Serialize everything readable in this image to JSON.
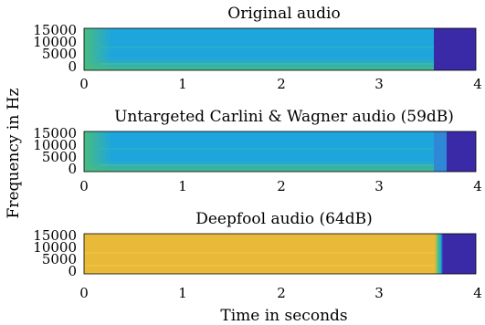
{
  "chart_data": [
    {
      "type": "heatmap",
      "title": "Original audio",
      "x_range": [
        0,
        4
      ],
      "y_range": [
        0,
        16000
      ],
      "x_ticks": [
        0,
        1,
        2,
        3,
        4
      ],
      "y_ticks": [
        0,
        5000,
        10000,
        15000
      ],
      "signal_end_s": 3.55,
      "background_color": "#1ea6dc",
      "silence_color": "#3b2aa8",
      "low_band_color": "#4dbd7a"
    },
    {
      "type": "heatmap",
      "title": "Untargeted Carlini & Wagner audio (59dB)",
      "x_range": [
        0,
        4
      ],
      "y_range": [
        0,
        16000
      ],
      "x_ticks": [
        0,
        1,
        2,
        3,
        4
      ],
      "y_ticks": [
        0,
        5000,
        10000,
        15000
      ],
      "signal_end_s": 3.55,
      "perturbation_end_s": 3.67,
      "background_color": "#1ea6dc",
      "silence_color": "#3b2aa8",
      "low_band_color": "#4dbd7a"
    },
    {
      "type": "heatmap",
      "title": "Deepfool audio (64dB)",
      "x_range": [
        0,
        4
      ],
      "y_range": [
        0,
        16000
      ],
      "x_ticks": [
        0,
        1,
        2,
        3,
        4
      ],
      "y_ticks": [
        0,
        5000,
        10000,
        15000
      ],
      "signal_end_s": 3.58,
      "background_color": "#e9ba3a",
      "silence_color": "#3b2aa8",
      "low_band_color": "#f4cf4a"
    }
  ],
  "xlabel": "Time in seconds",
  "ylabel": "Frequency in Hz"
}
